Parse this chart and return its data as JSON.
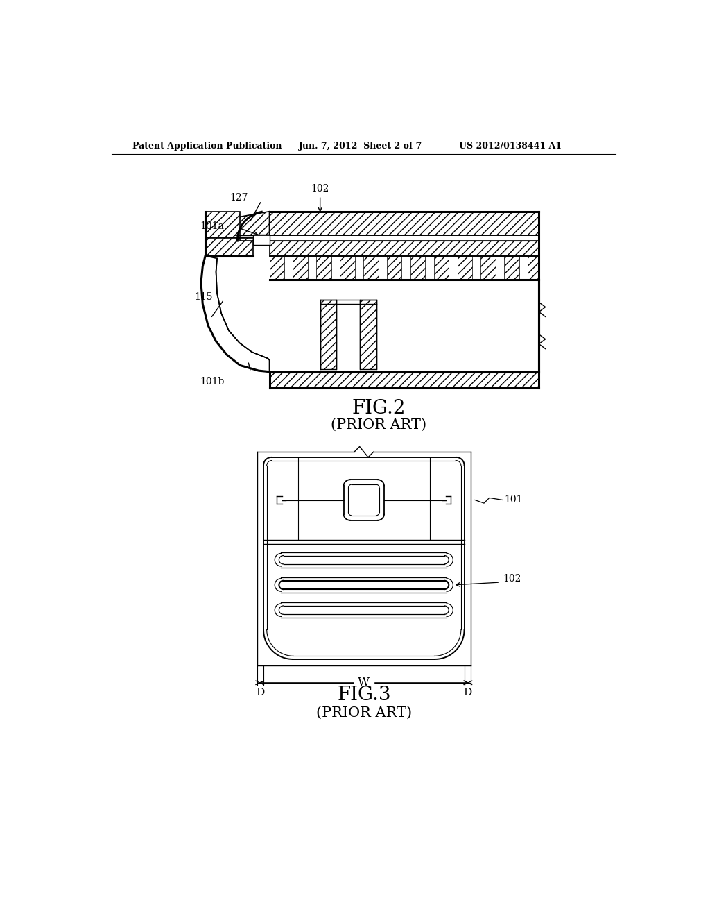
{
  "bg_color": "#ffffff",
  "header_left": "Patent Application Publication",
  "header_center": "Jun. 7, 2012  Sheet 2 of 7",
  "header_right": "US 2012/0138441 A1",
  "fig2_title": "FIG.2",
  "fig2_subtitle": "(PRIOR ART)",
  "fig3_title": "FIG.3",
  "fig3_subtitle": "(PRIOR ART)",
  "fig2_labels": [
    "102",
    "127",
    "101a",
    "115",
    "101b"
  ],
  "fig3_labels": [
    "101",
    "102",
    "W",
    "D",
    "D"
  ]
}
